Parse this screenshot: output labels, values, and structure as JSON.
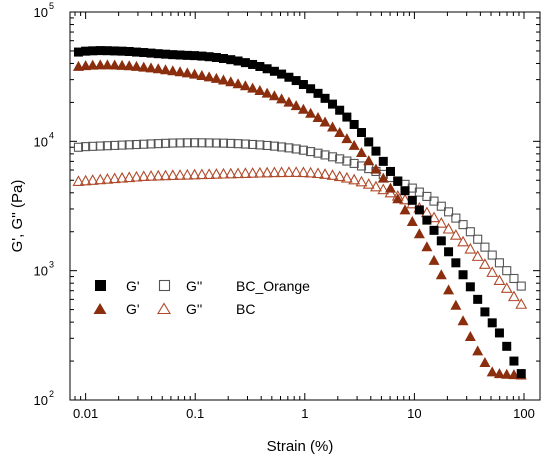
{
  "chart_data": {
    "type": "scatter",
    "xlabel": "Strain (%)",
    "ylabel": "G', G'' (Pa)",
    "xscale": "log",
    "yscale": "log",
    "xlim": [
      0.0072,
      140
    ],
    "ylim": [
      100,
      100000
    ],
    "grid": false,
    "legend_position": "lower-left",
    "x_ticks": [
      {
        "value": 0.01,
        "label": "0.01"
      },
      {
        "value": 0.1,
        "label": "0.1"
      },
      {
        "value": 1,
        "label": "1"
      },
      {
        "value": 10,
        "label": "10"
      },
      {
        "value": 100,
        "label": "100"
      }
    ],
    "y_ticks": [
      {
        "value": 100,
        "base": "10",
        "exp": "2"
      },
      {
        "value": 1000,
        "base": "10",
        "exp": "3"
      },
      {
        "value": 10000,
        "base": "10",
        "exp": "4"
      },
      {
        "value": 100000,
        "base": "10",
        "exp": "5"
      }
    ],
    "x": [
      0.0086,
      0.01,
      0.0116,
      0.0136,
      0.0158,
      0.0184,
      0.0215,
      0.025,
      0.0291,
      0.0339,
      0.0395,
      0.046,
      0.0536,
      0.0624,
      0.0727,
      0.0847,
      0.0986,
      0.115,
      0.134,
      0.156,
      0.181,
      0.211,
      0.246,
      0.287,
      0.334,
      0.389,
      0.453,
      0.528,
      0.614,
      0.716,
      0.834,
      0.971,
      1.13,
      1.32,
      1.53,
      1.79,
      2.08,
      2.42,
      2.82,
      3.29,
      3.83,
      4.46,
      5.2,
      6.05,
      7.05,
      8.21,
      9.57,
      11.1,
      13.0,
      15.1,
      17.6,
      20.5,
      23.9,
      27.8,
      32.4,
      37.8,
      44.0,
      51.3,
      59.7,
      69.6,
      81.0,
      94.4
    ],
    "series": [
      {
        "name": "G'",
        "legend_group": "BC_Orange",
        "marker": "square-filled",
        "color": "#000000",
        "y": [
          49000,
          49800,
          50100,
          50300,
          50200,
          50000,
          49800,
          49500,
          49000,
          48600,
          48100,
          47600,
          47200,
          46800,
          46500,
          46200,
          46000,
          45600,
          45100,
          44500,
          43700,
          42800,
          41800,
          40600,
          39300,
          37900,
          36400,
          34800,
          33100,
          31300,
          29500,
          27500,
          25500,
          23500,
          21500,
          19400,
          17400,
          15400,
          13500,
          11700,
          9900,
          8400,
          7000,
          5850,
          4900,
          4150,
          3500,
          2950,
          2460,
          2050,
          1700,
          1400,
          1150,
          930,
          750,
          600,
          480,
          395,
          330,
          260,
          200,
          160
        ]
      },
      {
        "name": "G''",
        "legend_group": "BC_Orange",
        "marker": "square-open",
        "color": "#555555",
        "y": [
          9000,
          9100,
          9150,
          9200,
          9250,
          9300,
          9350,
          9400,
          9450,
          9500,
          9550,
          9600,
          9650,
          9700,
          9720,
          9740,
          9750,
          9740,
          9720,
          9700,
          9680,
          9640,
          9590,
          9530,
          9460,
          9380,
          9290,
          9180,
          9050,
          8900,
          8730,
          8540,
          8330,
          8100,
          7850,
          7590,
          7320,
          7040,
          6750,
          6450,
          6150,
          5850,
          5550,
          5250,
          4950,
          4650,
          4350,
          4050,
          3750,
          3450,
          3150,
          2850,
          2550,
          2270,
          2000,
          1750,
          1520,
          1320,
          1150,
          1000,
          870,
          760
        ]
      },
      {
        "name": "G'",
        "legend_group": "BC",
        "marker": "triangle-filled",
        "color": "#8b2e0e",
        "y": [
          38000,
          38500,
          38800,
          39000,
          39000,
          38900,
          38700,
          38400,
          38000,
          37500,
          37000,
          36400,
          35800,
          35100,
          34500,
          33800,
          33100,
          32300,
          31500,
          30700,
          29800,
          28900,
          27900,
          26900,
          25800,
          24700,
          23600,
          22500,
          21300,
          20100,
          18900,
          17700,
          16500,
          15300,
          14100,
          12900,
          11700,
          10500,
          9300,
          8200,
          7100,
          6100,
          5200,
          4350,
          3600,
          2950,
          2400,
          1930,
          1530,
          1200,
          930,
          710,
          540,
          410,
          310,
          240,
          195,
          165,
          160,
          158,
          157,
          156
        ]
      },
      {
        "name": "G''",
        "legend_group": "BC",
        "marker": "triangle-open",
        "color": "#b04a2a",
        "y": [
          4900,
          4950,
          5000,
          5050,
          5100,
          5150,
          5200,
          5250,
          5300,
          5350,
          5380,
          5400,
          5420,
          5450,
          5470,
          5490,
          5510,
          5530,
          5550,
          5570,
          5590,
          5610,
          5630,
          5650,
          5670,
          5690,
          5710,
          5730,
          5740,
          5750,
          5750,
          5740,
          5700,
          5640,
          5560,
          5460,
          5340,
          5200,
          5040,
          4860,
          4660,
          4450,
          4230,
          4000,
          3770,
          3530,
          3290,
          3050,
          2810,
          2570,
          2330,
          2100,
          1880,
          1670,
          1470,
          1290,
          1120,
          970,
          840,
          730,
          630,
          550
        ]
      }
    ]
  },
  "legend": {
    "rows": [
      {
        "series_a": "G'",
        "series_b": "G''",
        "label": "BC_Orange"
      },
      {
        "series_a": "G'",
        "series_b": "G''",
        "label": "BC"
      }
    ]
  }
}
